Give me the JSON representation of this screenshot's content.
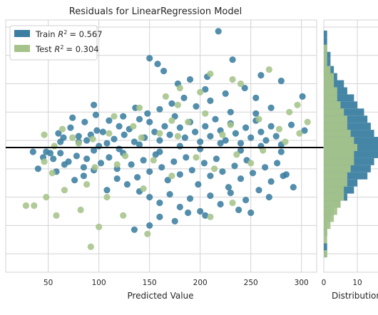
{
  "chart_data": {
    "type": "scatter",
    "title": "Residuals for LinearRegression Model",
    "xlabel": "Predicted Value",
    "ylabel": "",
    "xlim": [
      8,
      315
    ],
    "ylim": [
      -176,
      180
    ],
    "xticks": [
      "50",
      "100",
      "150",
      "200",
      "250",
      "300"
    ],
    "y_gridlines": [
      -150,
      -110,
      -70,
      -30,
      10,
      50,
      90,
      130,
      170
    ],
    "grid": true,
    "legend_position": "top-left",
    "zero_line": 0,
    "series": [
      {
        "name": "Train R² = 0.567",
        "legend_prefix": "Train ",
        "r2_text": "= 0.567",
        "color": "#3B7EA1",
        "points": [
          [
            218,
            164
          ],
          [
            150,
            126
          ],
          [
            158,
            118
          ],
          [
            164,
            108
          ],
          [
            190,
            96
          ],
          [
            207,
            100
          ],
          [
            232,
            124
          ],
          [
            260,
            102
          ],
          [
            280,
            94
          ],
          [
            301,
            72
          ],
          [
            60,
            20
          ],
          [
            65,
            14
          ],
          [
            72,
            28
          ],
          [
            80,
            16
          ],
          [
            88,
            10
          ],
          [
            92,
            18
          ],
          [
            98,
            24
          ],
          [
            104,
            22
          ],
          [
            108,
            6
          ],
          [
            115,
            12
          ],
          [
            120,
            30
          ],
          [
            125,
            18
          ],
          [
            130,
            26
          ],
          [
            135,
            8
          ],
          [
            140,
            40
          ],
          [
            145,
            14
          ],
          [
            150,
            36
          ],
          [
            155,
            22
          ],
          [
            160,
            10
          ],
          [
            165,
            30
          ],
          [
            170,
            18
          ],
          [
            175,
            44
          ],
          [
            180,
            28
          ],
          [
            185,
            14
          ],
          [
            190,
            36
          ],
          [
            195,
            22
          ],
          [
            200,
            8
          ],
          [
            205,
            30
          ],
          [
            210,
            16
          ],
          [
            215,
            40
          ],
          [
            220,
            24
          ],
          [
            225,
            10
          ],
          [
            230,
            34
          ],
          [
            235,
            20
          ],
          [
            240,
            6
          ],
          [
            245,
            28
          ],
          [
            250,
            14
          ],
          [
            255,
            38
          ],
          [
            260,
            22
          ],
          [
            265,
            10
          ],
          [
            270,
            30
          ],
          [
            275,
            16
          ],
          [
            280,
            4
          ],
          [
            48,
            -6
          ],
          [
            55,
            -16
          ],
          [
            62,
            -8
          ],
          [
            70,
            -20
          ],
          [
            78,
            -12
          ],
          [
            85,
            -28
          ],
          [
            95,
            -4
          ],
          [
            102,
            -22
          ],
          [
            110,
            -14
          ],
          [
            118,
            -30
          ],
          [
            124,
            -8
          ],
          [
            132,
            -24
          ],
          [
            138,
            -42
          ],
          [
            144,
            -18
          ],
          [
            150,
            -34
          ],
          [
            156,
            -10
          ],
          [
            162,
            -28
          ],
          [
            168,
            -46
          ],
          [
            174,
            -20
          ],
          [
            180,
            -38
          ],
          [
            186,
            -14
          ],
          [
            192,
            -32
          ],
          [
            198,
            -52
          ],
          [
            204,
            -22
          ],
          [
            210,
            -40
          ],
          [
            216,
            -16
          ],
          [
            222,
            -34
          ],
          [
            228,
            -56
          ],
          [
            234,
            -26
          ],
          [
            240,
            -44
          ],
          [
            246,
            -18
          ],
          [
            252,
            -36
          ],
          [
            258,
            -60
          ],
          [
            264,
            -28
          ],
          [
            270,
            -48
          ],
          [
            276,
            -22
          ],
          [
            282,
            -40
          ],
          [
            140,
            -62
          ],
          [
            150,
            -70
          ],
          [
            160,
            -78
          ],
          [
            170,
            -66
          ],
          [
            180,
            -84
          ],
          [
            190,
            -72
          ],
          [
            200,
            -90
          ],
          [
            210,
            -68
          ],
          [
            220,
            -80
          ],
          [
            230,
            -64
          ],
          [
            245,
            -74
          ],
          [
            160,
            -98
          ],
          [
            175,
            -104
          ],
          [
            205,
            -96
          ],
          [
            150,
            -110
          ],
          [
            135,
            -116
          ],
          [
            250,
            -92
          ],
          [
            40,
            -30
          ],
          [
            45,
            -14
          ],
          [
            35,
            -6
          ],
          [
            285,
            -38
          ],
          [
            292,
            -56
          ],
          [
            268,
            -70
          ],
          [
            238,
            -88
          ],
          [
            188,
            -92
          ],
          [
            128,
            -52
          ],
          [
            118,
            -44
          ],
          [
            108,
            -60
          ],
          [
            95,
            -32
          ],
          [
            85,
            -40
          ],
          [
            76,
            -46
          ],
          [
            66,
            -24
          ],
          [
            58,
            -34
          ],
          [
            52,
            -8
          ],
          [
            303,
            24
          ],
          [
            290,
            32
          ],
          [
            270,
            56
          ],
          [
            255,
            70
          ],
          [
            244,
            84
          ],
          [
            225,
            76
          ],
          [
            210,
            66
          ],
          [
            196,
            58
          ],
          [
            184,
            70
          ],
          [
            172,
            62
          ],
          [
            160,
            54
          ],
          [
            148,
            48
          ],
          [
            136,
            56
          ],
          [
            124,
            44
          ],
          [
            110,
            38
          ],
          [
            97,
            46
          ],
          [
            86,
            36
          ],
          [
            74,
            42
          ],
          [
            62,
            8
          ],
          [
            100,
            2
          ],
          [
            120,
            -2
          ],
          [
            140,
            4
          ],
          [
            160,
            -6
          ],
          [
            180,
            2
          ],
          [
            200,
            -2
          ],
          [
            220,
            6
          ],
          [
            240,
            -4
          ],
          [
            260,
            2
          ],
          [
            280,
            -6
          ],
          [
            230,
            50
          ],
          [
            205,
            82
          ],
          [
            178,
            90
          ],
          [
            255,
            48
          ],
          [
            95,
            60
          ],
          [
            80,
            8
          ],
          [
            88,
            -16
          ]
        ]
      },
      {
        "name": "Test R² = 0.304",
        "legend_prefix": "Test ",
        "r2_text": "= 0.304",
        "color": "#A5C38A",
        "points": [
          [
            268,
            110
          ],
          [
            240,
            90
          ],
          [
            232,
            96
          ],
          [
            200,
            78
          ],
          [
            178,
            60
          ],
          [
            166,
            72
          ],
          [
            140,
            56
          ],
          [
            115,
            44
          ],
          [
            172,
            38
          ],
          [
            205,
            48
          ],
          [
            230,
            32
          ],
          [
            258,
            40
          ],
          [
            278,
            26
          ],
          [
            298,
            20
          ],
          [
            306,
            36
          ],
          [
            284,
            8
          ],
          [
            262,
            -4
          ],
          [
            46,
            18
          ],
          [
            64,
            26
          ],
          [
            80,
            6
          ],
          [
            94,
            12
          ],
          [
            142,
            14
          ],
          [
            178,
            16
          ],
          [
            222,
            18
          ],
          [
            126,
            -12
          ],
          [
            154,
            -18
          ],
          [
            196,
            -14
          ],
          [
            236,
            -10
          ],
          [
            250,
            -22
          ],
          [
            118,
            -24
          ],
          [
            66,
            -60
          ],
          [
            82,
            -88
          ],
          [
            48,
            -70
          ],
          [
            28,
            -82
          ],
          [
            36,
            -82
          ],
          [
            58,
            -96
          ],
          [
            92,
            -140
          ],
          [
            100,
            -112
          ],
          [
            124,
            -96
          ],
          [
            148,
            -122
          ],
          [
            210,
            -98
          ],
          [
            232,
            -78
          ],
          [
            108,
            -70
          ],
          [
            88,
            -52
          ],
          [
            46,
            -20
          ],
          [
            54,
            -36
          ],
          [
            172,
            -40
          ],
          [
            214,
            -30
          ],
          [
            144,
            -58
          ],
          [
            96,
            -28
          ],
          [
            296,
            60
          ],
          [
            288,
            50
          ],
          [
            188,
            36
          ],
          [
            160,
            20
          ],
          [
            134,
            30
          ],
          [
            110,
            20
          ],
          [
            74,
            14
          ],
          [
            56,
            2
          ],
          [
            210,
            104
          ],
          [
            180,
            84
          ]
        ]
      }
    ]
  },
  "distribution_panel": {
    "xlabel": "Distribution",
    "xticks": [
      "0",
      "10"
    ],
    "train_color": "#3B7EA1",
    "test_color": "#A5C38A",
    "bins": [
      -170,
      -160,
      -150,
      -140,
      -130,
      -120,
      -110,
      -100,
      -90,
      -80,
      -70,
      -60,
      -50,
      -40,
      -30,
      -20,
      -10,
      0,
      10,
      20,
      30,
      40,
      50,
      60,
      70,
      80,
      90,
      100,
      110,
      120,
      130,
      140,
      150,
      160,
      170
    ],
    "train_counts": [
      0,
      0,
      1,
      1,
      0,
      1,
      1,
      2,
      3,
      5,
      7,
      9,
      10,
      13,
      14,
      15,
      17,
      19,
      17,
      15,
      14,
      13,
      12,
      10,
      9,
      7,
      6,
      4,
      3,
      2,
      2,
      1,
      1,
      1,
      0
    ],
    "test_counts": [
      0,
      0,
      1,
      0,
      1,
      1,
      2,
      3,
      4,
      5,
      6,
      6,
      7,
      7,
      8,
      9,
      9,
      10,
      9,
      8,
      7,
      7,
      6,
      5,
      4,
      4,
      3,
      3,
      2,
      1,
      1,
      1,
      0,
      0,
      0
    ]
  }
}
